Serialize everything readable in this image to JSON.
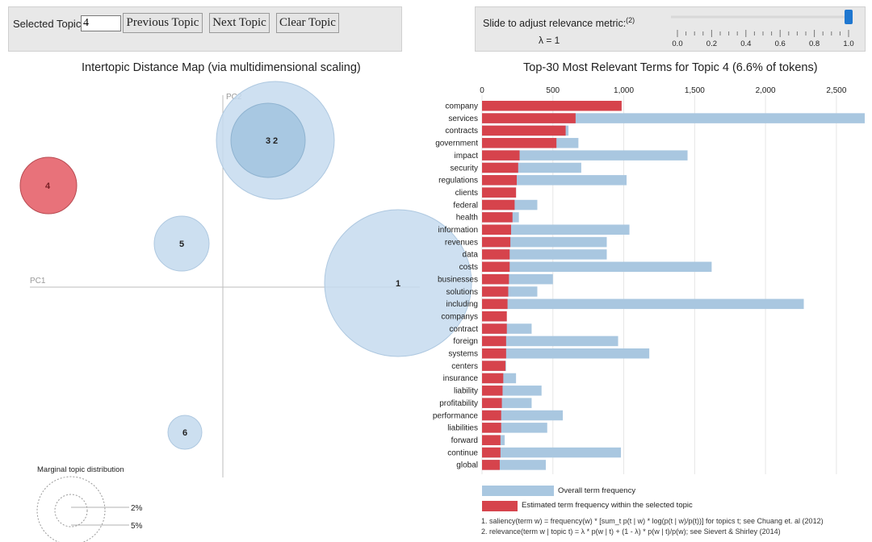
{
  "controls": {
    "selected_topic_label": "Selected Topic:",
    "selected_topic_value": "4",
    "previous_button": "Previous Topic",
    "next_button": "Next Topic",
    "clear_button": "Clear Topic",
    "slider_label": "Slide to adjust relevance metric:",
    "slider_footnote_mark": "(2)",
    "lambda_text": "λ = 1",
    "lambda_value": 1.0,
    "slider_ticks": [
      "0.0",
      "0.2",
      "0.4",
      "0.6",
      "0.8",
      "1.0"
    ]
  },
  "colors": {
    "selected_topic": "#e8727a",
    "topic_circle": "#c6dbee",
    "overall_bar": "#a9c7e0",
    "estimated_bar": "#d6434c",
    "slider_handle": "#1f77d0"
  },
  "mds": {
    "title": "Intertopic Distance Map (via multidimensional scaling)",
    "axis_x": "PC1",
    "axis_y": "PC2",
    "topics": [
      {
        "label": "1",
        "selected": false
      },
      {
        "label": "3",
        "selected": false
      },
      {
        "label": "2",
        "selected": false
      },
      {
        "label": "4",
        "selected": true
      },
      {
        "label": "5",
        "selected": false
      },
      {
        "label": "6",
        "selected": false
      }
    ],
    "marginal_title": "Marginal topic distribution",
    "marginal_labels": [
      "2%",
      "5%"
    ]
  },
  "chart_data": {
    "type": "bar",
    "orientation": "horizontal",
    "title": "Top-30 Most Relevant Terms for Topic 4 (6.6% of tokens)",
    "xlim": [
      0,
      2700
    ],
    "xticks": [
      "0",
      "500",
      "1,000",
      "1,500",
      "2,000",
      "2,500"
    ],
    "xtick_values": [
      0,
      500,
      1000,
      1500,
      2000,
      2500
    ],
    "grid": true,
    "categories": [
      "company",
      "services",
      "contracts",
      "government",
      "impact",
      "security",
      "regulations",
      "clients",
      "federal",
      "health",
      "information",
      "revenues",
      "data",
      "costs",
      "businesses",
      "solutions",
      "including",
      "companys",
      "contract",
      "foreign",
      "systems",
      "centers",
      "insurance",
      "liability",
      "profitability",
      "performance",
      "liabilities",
      "forward",
      "continue",
      "global"
    ],
    "series": [
      {
        "name": "Overall term frequency",
        "values": [
          980,
          2700,
          610,
          680,
          1450,
          700,
          1020,
          240,
          390,
          260,
          1040,
          880,
          880,
          1620,
          500,
          390,
          2270,
          170,
          350,
          960,
          1180,
          170,
          240,
          420,
          350,
          570,
          460,
          160,
          980,
          450
        ]
      },
      {
        "name": "Estimated term frequency within the selected topic",
        "values": [
          985,
          660,
          590,
          525,
          265,
          255,
          245,
          240,
          230,
          215,
          205,
          200,
          195,
          195,
          190,
          185,
          180,
          175,
          175,
          170,
          170,
          165,
          150,
          145,
          140,
          135,
          135,
          130,
          130,
          125
        ]
      }
    ],
    "legend_position": "bottom-left",
    "footnote_1": "1. saliency(term w) = frequency(w) * [sum_t p(t | w) * log(p(t | w)/p(t))] for topics t; see Chuang et. al (2012)",
    "footnote_2": "2. relevance(term w | topic t) = λ * p(w | t) + (1 - λ) * p(w | t)/p(w); see Sievert & Shirley (2014)"
  }
}
